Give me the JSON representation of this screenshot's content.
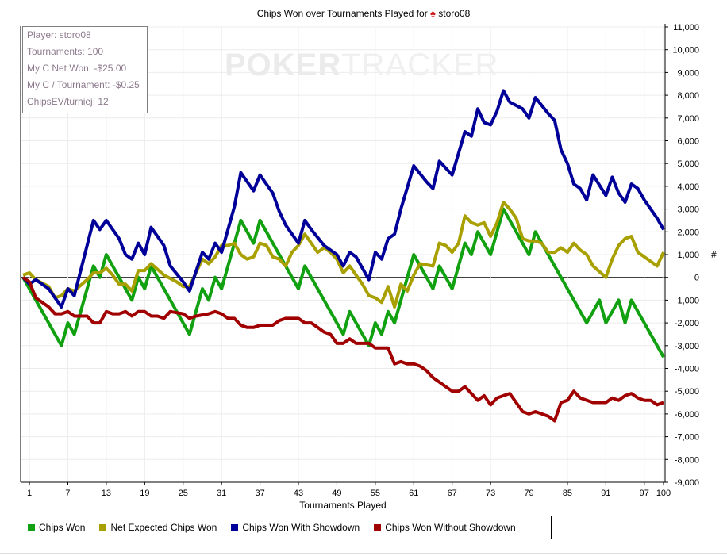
{
  "title": {
    "prefix": "Chips Won over Tournaments Played for",
    "icon": "poker-spade-icon",
    "player": "storo08"
  },
  "watermark": {
    "bold": "POKER",
    "light": "TRACKER"
  },
  "info": [
    "Player: storo08",
    "Tournaments: 100",
    "My C Net Won: -$25.00",
    "My C / Tournament: -$0.25",
    "ChipsEV/turniej: 12"
  ],
  "chart_data": {
    "type": "line",
    "title": "Chips Won over Tournaments Played for storo08",
    "xlabel": "Tournaments Played",
    "ylabel": "#",
    "xlim": [
      0,
      100
    ],
    "ylim": [
      -9000,
      11000
    ],
    "x_ticks": [
      1,
      7,
      13,
      19,
      25,
      31,
      37,
      43,
      49,
      55,
      61,
      67,
      73,
      79,
      85,
      91,
      97,
      100
    ],
    "y_ticks": [
      11000,
      10000,
      9000,
      8000,
      7000,
      6000,
      5000,
      4000,
      3000,
      2000,
      1000,
      0,
      -1000,
      -2000,
      -3000,
      -4000,
      -5000,
      -6000,
      -7000,
      -8000,
      -9000
    ],
    "y_tick_labels": [
      "11,000",
      "10,000",
      "9,000",
      "8,000",
      "7,000",
      "6,000",
      "5,000",
      "4,000",
      "3,000",
      "2,000",
      "1,000",
      "0",
      "-1,000",
      "-2,000",
      "-3,000",
      "-4,000",
      "-5,000",
      "-6,000",
      "-7,000",
      "-8,000",
      "-9,000"
    ],
    "y_axis_side": "right",
    "grid": true,
    "legend_position": "bottom",
    "series": [
      {
        "name": "Chips Won",
        "color": "#10a010",
        "x": [
          0,
          6,
          7,
          8,
          11,
          12,
          13,
          17,
          18,
          19,
          20,
          26,
          28,
          29,
          30,
          31,
          34,
          36,
          37,
          43,
          44,
          50,
          51,
          54,
          55,
          56,
          57,
          58,
          61,
          64,
          65,
          67,
          69,
          70,
          71,
          73,
          75,
          79,
          80,
          88,
          90,
          91,
          93,
          94,
          95,
          100
        ],
        "y": [
          0,
          -3000,
          -2000,
          -2500,
          500,
          0,
          1000,
          -1000,
          0,
          -500,
          500,
          -2500,
          -500,
          -1000,
          0,
          -500,
          2500,
          1500,
          2500,
          -500,
          500,
          -2500,
          -1500,
          -3000,
          -2000,
          -2500,
          -1500,
          -2000,
          1000,
          -500,
          500,
          -500,
          1500,
          1000,
          2000,
          1000,
          3000,
          1000,
          2000,
          -2000,
          -1000,
          -2000,
          -1000,
          -2000,
          -1000,
          -3500
        ]
      },
      {
        "name": "Net Expected Chips Won",
        "color": "#a8a000",
        "x": [
          0,
          1,
          2,
          4,
          5,
          6,
          7,
          8,
          10,
          11,
          12,
          13,
          14,
          15,
          16,
          17,
          18,
          19,
          20,
          22,
          24,
          25,
          26,
          28,
          29,
          30,
          31,
          32,
          33,
          34,
          35,
          36,
          37,
          38,
          39,
          40,
          41,
          42,
          43,
          44,
          45,
          46,
          47,
          48,
          49,
          50,
          51,
          52,
          53,
          54,
          55,
          56,
          57,
          58,
          59,
          60,
          61,
          62,
          64,
          65,
          66,
          67,
          68,
          69,
          70,
          71,
          72,
          73,
          74,
          75,
          76,
          77,
          78,
          79,
          80,
          81,
          82,
          83,
          84,
          85,
          86,
          87,
          88,
          89,
          91,
          92,
          93,
          94,
          95,
          96,
          97,
          98,
          99,
          100
        ],
        "y": [
          100,
          200,
          -100,
          -400,
          -900,
          -800,
          -500,
          -600,
          -100,
          200,
          200,
          400,
          100,
          -300,
          -300,
          -600,
          300,
          300,
          600,
          100,
          -200,
          -400,
          -400,
          800,
          600,
          900,
          1400,
          1400,
          1500,
          1000,
          800,
          900,
          1500,
          1400,
          900,
          800,
          500,
          1100,
          1400,
          1900,
          1500,
          1100,
          1300,
          1100,
          800,
          200,
          500,
          100,
          -300,
          -800,
          -900,
          -1100,
          -400,
          -1300,
          -300,
          -600,
          100,
          600,
          500,
          1500,
          1400,
          1100,
          1500,
          2700,
          2400,
          2300,
          2400,
          1800,
          2400,
          3300,
          3000,
          2600,
          1700,
          1600,
          1600,
          1500,
          1100,
          1100,
          1300,
          1100,
          1500,
          1200,
          1000,
          500,
          0,
          800,
          1400,
          1700,
          1800,
          1100,
          900,
          700,
          500,
          1100
        ]
      },
      {
        "name": "Chips Won With Showdown",
        "color": "#000099",
        "x": [
          0,
          1,
          2,
          4,
          6,
          7,
          8,
          11,
          12,
          13,
          15,
          16,
          17,
          18,
          19,
          20,
          22,
          23,
          25,
          26,
          28,
          29,
          30,
          31,
          33,
          34,
          36,
          37,
          39,
          40,
          41,
          43,
          44,
          45,
          47,
          49,
          50,
          51,
          52,
          54,
          55,
          56,
          57,
          58,
          59,
          61,
          63,
          64,
          65,
          67,
          69,
          70,
          71,
          72,
          73,
          74,
          75,
          76,
          78,
          79,
          80,
          82,
          83,
          84,
          85,
          86,
          87,
          88,
          89,
          91,
          92,
          93,
          94,
          95,
          96,
          97,
          98,
          99,
          100
        ],
        "y": [
          0,
          -300,
          -100,
          -500,
          -1300,
          -500,
          -800,
          2500,
          2100,
          2500,
          1700,
          1000,
          800,
          1500,
          1000,
          2200,
          1400,
          500,
          -200,
          -600,
          1100,
          800,
          1500,
          1100,
          3100,
          4600,
          3800,
          4500,
          3700,
          2900,
          2300,
          1500,
          2500,
          2100,
          1400,
          1000,
          500,
          1100,
          900,
          -100,
          1100,
          800,
          1700,
          1900,
          3000,
          4900,
          4200,
          3900,
          5100,
          4500,
          6400,
          6200,
          7400,
          6800,
          6700,
          7300,
          8200,
          7700,
          7400,
          7000,
          7900,
          7200,
          6900,
          5600,
          5000,
          4100,
          3900,
          3400,
          4500,
          3600,
          4400,
          3700,
          3300,
          4100,
          3900,
          3400,
          3000,
          2600,
          2100
        ]
      },
      {
        "name": "Chips Won Without Showdown",
        "color": "#a00000",
        "x": [
          0,
          1,
          2,
          4,
          5,
          6,
          7,
          8,
          10,
          11,
          12,
          13,
          14,
          15,
          16,
          17,
          18,
          19,
          20,
          21,
          22,
          23,
          25,
          26,
          27,
          29,
          30,
          31,
          32,
          33,
          34,
          35,
          36,
          37,
          39,
          40,
          41,
          43,
          44,
          45,
          46,
          47,
          48,
          49,
          50,
          51,
          52,
          54,
          55,
          57,
          58,
          59,
          60,
          61,
          62,
          63,
          64,
          65,
          66,
          67,
          68,
          69,
          71,
          72,
          73,
          74,
          75,
          76,
          78,
          79,
          80,
          81,
          82,
          83,
          84,
          85,
          86,
          87,
          89,
          91,
          92,
          93,
          94,
          95,
          96,
          97,
          98,
          99,
          100
        ],
        "y": [
          0,
          -200,
          -900,
          -1300,
          -1600,
          -1600,
          -1500,
          -1700,
          -1700,
          -2000,
          -2000,
          -1500,
          -1600,
          -1600,
          -1500,
          -1700,
          -1500,
          -1500,
          -1700,
          -1700,
          -1800,
          -1500,
          -1600,
          -1800,
          -1700,
          -1600,
          -1500,
          -1600,
          -1800,
          -1800,
          -2100,
          -2200,
          -2200,
          -2100,
          -2100,
          -1900,
          -1800,
          -1800,
          -2000,
          -2000,
          -2200,
          -2400,
          -2500,
          -2900,
          -2900,
          -2700,
          -2900,
          -2900,
          -3100,
          -3100,
          -3800,
          -3700,
          -3800,
          -3800,
          -3900,
          -4100,
          -4400,
          -4600,
          -4800,
          -5000,
          -5000,
          -4800,
          -5400,
          -5200,
          -5600,
          -5300,
          -5200,
          -5100,
          -5900,
          -6000,
          -5900,
          -6000,
          -6100,
          -6300,
          -5500,
          -5400,
          -5000,
          -5300,
          -5500,
          -5500,
          -5300,
          -5400,
          -5200,
          -5100,
          -5300,
          -5400,
          -5400,
          -5600,
          -5500
        ]
      }
    ]
  }
}
